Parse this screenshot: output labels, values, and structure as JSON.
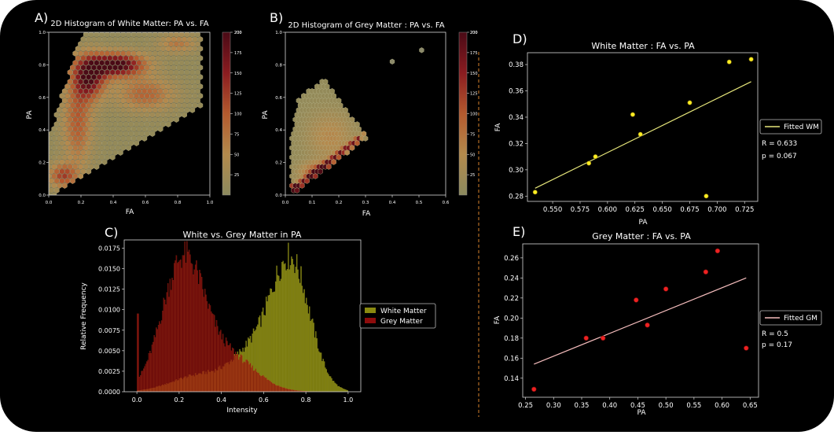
{
  "panels": {
    "A": {
      "letter": "A)",
      "chart_data": {
        "type": "heatmap",
        "subtype": "hexbin",
        "title": "2D Histogram of White Matter: PA vs. FA",
        "xlabel": "FA",
        "ylabel": "PA",
        "xlim": [
          0.0,
          1.0
        ],
        "ylim": [
          0.0,
          1.0
        ],
        "xticks": [
          "0.0",
          "0.2",
          "0.4",
          "0.6",
          "0.8",
          "1.0"
        ],
        "yticks": [
          "0.0",
          "0.2",
          "0.4",
          "0.6",
          "0.8",
          "1.0"
        ],
        "colorbar_ticks": [
          "25",
          "50",
          "75",
          "100",
          "125",
          "150",
          "175",
          "200"
        ],
        "colorbar_range": [
          0,
          200
        ],
        "hexgrid": {
          "x0": 0.0,
          "x1": 0.95,
          "dx": 0.033,
          "y0": 0.0,
          "y1": 1.0,
          "dy": 0.029
        },
        "density_model": {
          "region": "PA >= 0.6*FA - 0.02 and PA <= min(1, 0.35 + 3.2*FA) and FA <= 0.95",
          "components": [
            {
              "cx": 0.42,
              "cy": 0.8,
              "sx": 0.12,
              "sy": 0.05,
              "weight": 200
            },
            {
              "cx": 0.25,
              "cy": 0.72,
              "sx": 0.07,
              "sy": 0.09,
              "weight": 170
            },
            {
              "cx": 0.18,
              "cy": 0.45,
              "sx": 0.06,
              "sy": 0.18,
              "weight": 90
            },
            {
              "cx": 0.6,
              "cy": 0.62,
              "sx": 0.12,
              "sy": 0.07,
              "weight": 80
            },
            {
              "cx": 0.09,
              "cy": 0.12,
              "sx": 0.06,
              "sy": 0.05,
              "weight": 110
            },
            {
              "cx": 0.8,
              "cy": 0.93,
              "sx": 0.08,
              "sy": 0.04,
              "weight": 60
            }
          ]
        }
      }
    },
    "B": {
      "letter": "B)",
      "chart_data": {
        "type": "heatmap",
        "subtype": "hexbin",
        "title": "2D Histogram of Grey Matter : PA vs. FA",
        "xlabel": "FA",
        "ylabel": "PA",
        "xlim": [
          0.0,
          0.6
        ],
        "ylim": [
          0.0,
          1.0
        ],
        "xticks": [
          "0.0",
          "0.1",
          "0.2",
          "0.3",
          "0.4",
          "0.5",
          "0.6"
        ],
        "yticks": [
          "0.0",
          "0.2",
          "0.4",
          "0.6",
          "0.8",
          "1.0"
        ],
        "colorbar_ticks": [
          "25",
          "50",
          "75",
          "100",
          "125",
          "150",
          "175",
          "200"
        ],
        "colorbar_range": [
          0,
          200
        ],
        "hexgrid": {
          "x0": 0.0,
          "x1": 0.33,
          "dx": 0.0125,
          "y0": 0.0,
          "y1": 0.8,
          "dy": 0.029
        },
        "outliers": [
          {
            "x": 0.4,
            "y": 0.82
          },
          {
            "x": 0.51,
            "y": 0.89
          }
        ],
        "density_model": {
          "region": "blob of grey-matter voxels with lower ridge along PA ~ 1.25*FA",
          "components": [
            {
              "cx": 0.17,
              "cy": 0.36,
              "sx": 0.06,
              "sy": 0.1,
              "weight": 45
            },
            {
              "cx": 0.14,
              "cy": 0.14,
              "sx": 0.05,
              "sy": 0.04,
              "weight": 120
            },
            {
              "cx": 0.04,
              "cy": 0.04,
              "sx": 0.02,
              "sy": 0.02,
              "weight": 160
            }
          ]
        }
      }
    },
    "C": {
      "letter": "C)",
      "chart_data": {
        "type": "bar",
        "subtype": "histogram",
        "title": "White vs. Grey Matter in PA",
        "xlabel": "Intensity",
        "ylabel": "Relative Frequency",
        "xlim": [
          -0.06,
          1.06
        ],
        "ylim": [
          0,
          0.0185
        ],
        "xticks": [
          0.0,
          0.2,
          0.4,
          0.6,
          0.8,
          1.0
        ],
        "xtick_labels": [
          "0.0",
          "0.2",
          "0.4",
          "0.6",
          "0.8",
          "1.0"
        ],
        "yticks": [
          0,
          0.0025,
          0.005,
          0.0075,
          0.01,
          0.0125,
          0.015,
          0.0175
        ],
        "ytick_labels": [
          "0.0000",
          "0.0025",
          "0.0050",
          "0.0075",
          "0.0100",
          "0.0125",
          "0.0150",
          "0.0175"
        ],
        "legend": "right",
        "bin_width": 0.005,
        "series": [
          {
            "name": "White Matter",
            "color": "#8a8a10",
            "components": [
              {
                "mu": 0.73,
                "sigma": 0.09,
                "amp": 0.0155
              },
              {
                "mu": 0.55,
                "sigma": 0.1,
                "amp": 0.0045
              },
              {
                "mu": 0.3,
                "sigma": 0.13,
                "amp": 0.002
              }
            ],
            "range": [
              0.0,
              1.0
            ]
          },
          {
            "name": "Grey Matter",
            "color": "#8e0c0c",
            "components": [
              {
                "mu": 0.22,
                "sigma": 0.1,
                "amp": 0.016
              },
              {
                "mu": 0.45,
                "sigma": 0.12,
                "amp": 0.004
              }
            ],
            "range": [
              0.0,
              0.92
            ]
          }
        ]
      }
    },
    "D": {
      "letter": "D)",
      "chart_data": {
        "type": "scatter",
        "title": "White Matter : FA vs. PA",
        "xlabel": "PA",
        "ylabel": "FA",
        "xlim": [
          0.527,
          0.737
        ],
        "ylim": [
          0.276,
          0.389
        ],
        "xticks": [
          0.55,
          0.575,
          0.6,
          0.625,
          0.65,
          0.675,
          0.7,
          0.725
        ],
        "xtick_labels": [
          "0.550",
          "0.575",
          "0.600",
          "0.625",
          "0.650",
          "0.675",
          "0.700",
          "0.725"
        ],
        "yticks": [
          0.28,
          0.3,
          0.32,
          0.34,
          0.36,
          0.38
        ],
        "ytick_labels": [
          "0.28",
          "0.30",
          "0.32",
          "0.34",
          "0.36",
          "0.38"
        ],
        "points": [
          {
            "x": 0.534,
            "y": 0.283
          },
          {
            "x": 0.583,
            "y": 0.305
          },
          {
            "x": 0.589,
            "y": 0.31
          },
          {
            "x": 0.623,
            "y": 0.342
          },
          {
            "x": 0.63,
            "y": 0.327
          },
          {
            "x": 0.675,
            "y": 0.351
          },
          {
            "x": 0.69,
            "y": 0.28
          },
          {
            "x": 0.711,
            "y": 0.382
          },
          {
            "x": 0.731,
            "y": 0.384
          }
        ],
        "point_color": "#ffee22",
        "fit": {
          "x": [
            0.534,
            0.731
          ],
          "y": [
            0.286,
            0.367
          ]
        },
        "fit_color": "#e6e67a",
        "legend": "Fitted WM",
        "stats": [
          "R = 0.633",
          "p = 0.067"
        ]
      }
    },
    "E": {
      "letter": "E)",
      "chart_data": {
        "type": "scatter",
        "title": "Grey Matter : FA vs. PA",
        "xlabel": "PA",
        "ylabel": "FA",
        "xlim": [
          0.245,
          0.665
        ],
        "ylim": [
          0.121,
          0.274
        ],
        "xticks": [
          0.25,
          0.3,
          0.35,
          0.4,
          0.45,
          0.5,
          0.55,
          0.6,
          0.65
        ],
        "xtick_labels": [
          "0.25",
          "0.30",
          "0.35",
          "0.40",
          "0.45",
          "0.50",
          "0.55",
          "0.60",
          "0.65"
        ],
        "yticks": [
          0.14,
          0.16,
          0.18,
          0.2,
          0.22,
          0.24,
          0.26
        ],
        "ytick_labels": [
          "0.14",
          "0.16",
          "0.18",
          "0.20",
          "0.22",
          "0.24",
          "0.26"
        ],
        "points": [
          {
            "x": 0.265,
            "y": 0.129
          },
          {
            "x": 0.358,
            "y": 0.18
          },
          {
            "x": 0.388,
            "y": 0.18
          },
          {
            "x": 0.447,
            "y": 0.218
          },
          {
            "x": 0.467,
            "y": 0.193
          },
          {
            "x": 0.5,
            "y": 0.229
          },
          {
            "x": 0.571,
            "y": 0.246
          },
          {
            "x": 0.592,
            "y": 0.267
          },
          {
            "x": 0.643,
            "y": 0.17
          }
        ],
        "point_color": "#ee2222",
        "fit": {
          "x": [
            0.265,
            0.643
          ],
          "y": [
            0.154,
            0.24
          ]
        },
        "fit_color": "#f4bcbc",
        "legend": "Fitted GM",
        "stats": [
          "R = 0.5",
          "p = 0.17"
        ]
      }
    }
  },
  "colors": {
    "page": "#ffffff",
    "frame": "#000000",
    "text": "#ffffff",
    "axis": "#d8d8d8",
    "divider": "#d9822b"
  }
}
